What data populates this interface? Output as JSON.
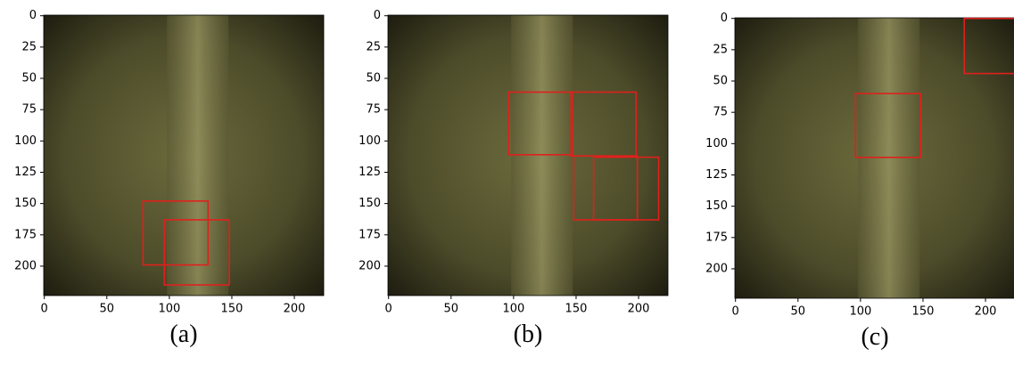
{
  "chart_data": [
    {
      "type": "image",
      "caption": "(a)",
      "xlim": [
        -0.5,
        223.5
      ],
      "ylim": [
        223.5,
        -0.5
      ],
      "xticks": [
        0,
        50,
        100,
        150,
        200
      ],
      "yticks": [
        0,
        25,
        50,
        75,
        100,
        125,
        150,
        175,
        200
      ],
      "box_color": "#e0201c",
      "boxes": [
        {
          "x": [
            79,
            131
          ],
          "y": [
            148,
            199
          ]
        },
        {
          "x": [
            96,
            148
          ],
          "y": [
            163,
            215
          ]
        }
      ]
    },
    {
      "type": "image",
      "caption": "(b)",
      "xlim": [
        -0.5,
        223.5
      ],
      "ylim": [
        223.5,
        -0.5
      ],
      "xticks": [
        0,
        50,
        100,
        150,
        200
      ],
      "yticks": [
        0,
        25,
        50,
        75,
        100,
        125,
        150,
        175,
        200
      ],
      "box_color": "#e0201c",
      "boxes": [
        {
          "x": [
            96,
            147
          ],
          "y": [
            61,
            111
          ]
        },
        {
          "x": [
            146,
            198
          ],
          "y": [
            61,
            112
          ]
        },
        {
          "x": [
            148,
            199
          ],
          "y": [
            112,
            163
          ]
        },
        {
          "x": [
            164,
            216
          ],
          "y": [
            113,
            163
          ]
        }
      ]
    },
    {
      "type": "image",
      "caption": "(c)",
      "xlim": [
        -0.5,
        223.5
      ],
      "ylim": [
        223.5,
        -0.5
      ],
      "xticks": [
        0,
        50,
        100,
        150,
        200
      ],
      "yticks": [
        0,
        25,
        50,
        75,
        100,
        125,
        150,
        175,
        200
      ],
      "box_color": "#e0201c",
      "boxes": [
        {
          "x": [
            96,
            148
          ],
          "y": [
            60,
            111
          ]
        },
        {
          "x": [
            183,
            240
          ],
          "y": [
            0,
            44
          ]
        }
      ]
    }
  ]
}
